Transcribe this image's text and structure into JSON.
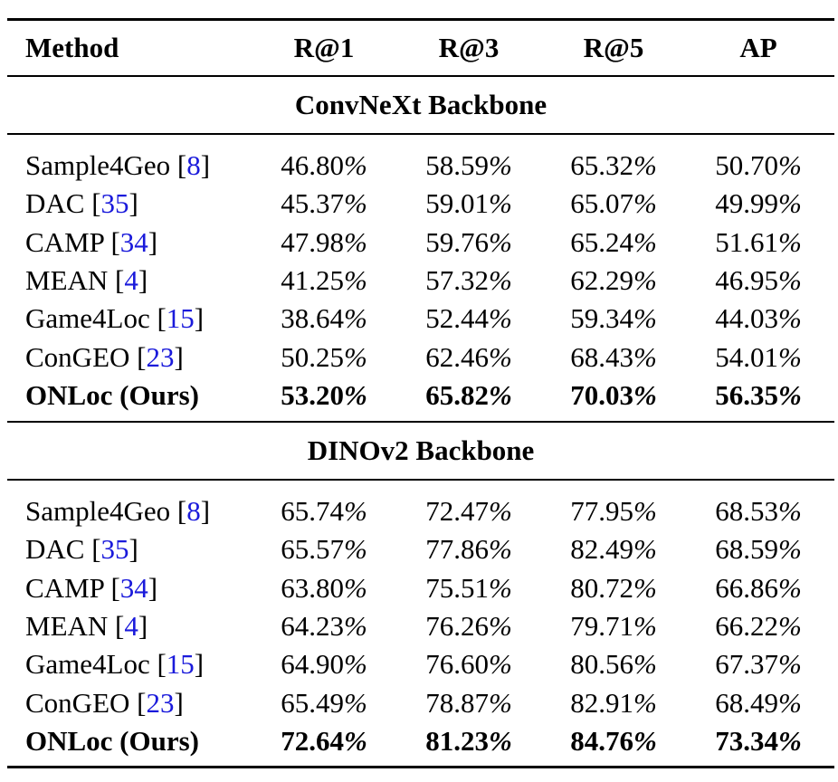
{
  "header": {
    "method": "Method",
    "r1": "R@1",
    "r3": "R@3",
    "r5": "R@5",
    "ap": "AP"
  },
  "sections": [
    {
      "title": "ConvNeXt Backbone",
      "rows": [
        {
          "method": "Sample4Geo",
          "cite": "8",
          "r1": "46.80",
          "r3": "58.59",
          "r5": "65.32",
          "ap": "50.70"
        },
        {
          "method": "DAC",
          "cite": "35",
          "r1": "45.37",
          "r3": "59.01",
          "r5": "65.07",
          "ap": "49.99"
        },
        {
          "method": "CAMP",
          "cite": "34",
          "r1": "47.98",
          "r3": "59.76",
          "r5": "65.24",
          "ap": "51.61"
        },
        {
          "method": "MEAN",
          "cite": "4",
          "r1": "41.25",
          "r3": "57.32",
          "r5": "62.29",
          "ap": "46.95"
        },
        {
          "method": "Game4Loc",
          "cite": "15",
          "r1": "38.64",
          "r3": "52.44",
          "r5": "59.34",
          "ap": "44.03"
        },
        {
          "method": "ConGEO",
          "cite": "23",
          "r1": "50.25",
          "r3": "62.46",
          "r5": "68.43",
          "ap": "54.01"
        },
        {
          "method": "ONLoc (Ours)",
          "cite": "",
          "r1": "53.20",
          "r3": "65.82",
          "r5": "70.03",
          "ap": "56.35",
          "bold": true
        }
      ]
    },
    {
      "title": "DINOv2 Backbone",
      "rows": [
        {
          "method": "Sample4Geo",
          "cite": "8",
          "r1": "65.74",
          "r3": "72.47",
          "r5": "77.95",
          "ap": "68.53"
        },
        {
          "method": "DAC",
          "cite": "35",
          "r1": "65.57",
          "r3": "77.86",
          "r5": "82.49",
          "ap": "68.59"
        },
        {
          "method": "CAMP",
          "cite": "34",
          "r1": "63.80",
          "r3": "75.51",
          "r5": "80.72",
          "ap": "66.86"
        },
        {
          "method": "MEAN",
          "cite": "4",
          "r1": "64.23",
          "r3": "76.26",
          "r5": "79.71",
          "ap": "66.22"
        },
        {
          "method": "Game4Loc",
          "cite": "15",
          "r1": "64.90",
          "r3": "76.60",
          "r5": "80.56",
          "ap": "67.37"
        },
        {
          "method": "ConGEO",
          "cite": "23",
          "r1": "65.49",
          "r3": "78.87",
          "r5": "82.91",
          "ap": "68.49"
        },
        {
          "method": "ONLoc (Ours)",
          "cite": "",
          "r1": "72.64",
          "r3": "81.23",
          "r5": "84.76",
          "ap": "73.34",
          "bold": true
        }
      ]
    }
  ],
  "percent_sign": "%",
  "colors": {
    "citation": "#1a1adb",
    "text": "#000000"
  }
}
